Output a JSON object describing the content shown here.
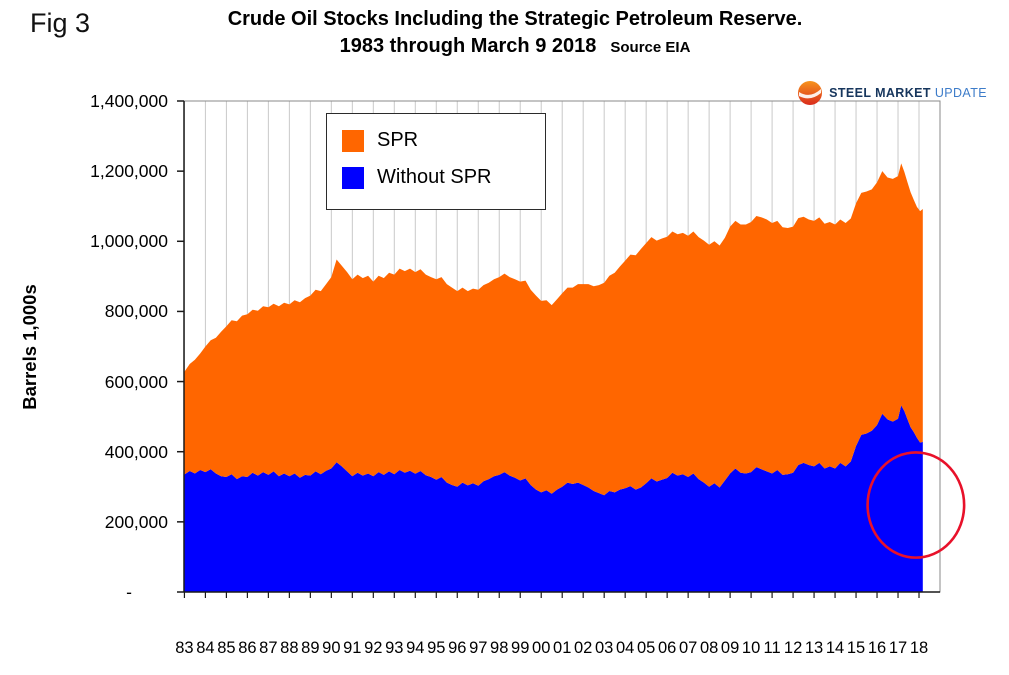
{
  "figure": {
    "label": "Fig 3"
  },
  "header": {
    "title_line1": "Crude Oil Stocks Including the Strategic Petroleum Reserve.",
    "title_line2": "1983 through March 9 2018",
    "source": "Source EIA"
  },
  "logo": {
    "word1": "STEEL",
    "word2": "MARKET",
    "word3": "UPDATE",
    "color_dark": "#17365D",
    "color_light": "#3D7CC9"
  },
  "legend": {
    "items": [
      {
        "label": "SPR",
        "color": "#FF6600"
      },
      {
        "label": "Without SPR",
        "color": "#0000FF"
      }
    ]
  },
  "y_axis": {
    "title": "Barrels 1,000s",
    "tick_labels": [
      "1,400,000",
      "1,200,000",
      "1,000,000",
      "800,000",
      "600,000",
      "400,000",
      "200,000",
      "-"
    ]
  },
  "x_axis": {
    "labels": [
      "83",
      "84",
      "85",
      "86",
      "87",
      "88",
      "89",
      "90",
      "91",
      "92",
      "93",
      "94",
      "95",
      "96",
      "97",
      "98",
      "99",
      "00",
      "01",
      "02",
      "03",
      "04",
      "05",
      "06",
      "07",
      "08",
      "09",
      "10",
      "11",
      "12",
      "13",
      "14",
      "15",
      "16",
      "17",
      "18"
    ]
  },
  "annotation": {
    "shape": "ellipse",
    "color": "#E8112A",
    "center_year": 2017.85,
    "center_value": 248000,
    "radius_years": 2.3,
    "radius_value": 150000
  },
  "chart_data": {
    "type": "area",
    "stacked": true,
    "title": "Crude Oil Stocks Including the Strategic Petroleum Reserve.",
    "subtitle": "1983 through March 9 2018",
    "source": "Source EIA",
    "xlabel": "",
    "ylabel": "Barrels 1,000s",
    "ylim": [
      0,
      1400000
    ],
    "ytick_interval": 200000,
    "legend_position": "top-left-inside",
    "grid": "vertical-only",
    "x_tick_years": [
      1983,
      1984,
      1985,
      1986,
      1987,
      1988,
      1989,
      1990,
      1991,
      1992,
      1993,
      1994,
      1995,
      1996,
      1997,
      1998,
      1999,
      2000,
      2001,
      2002,
      2003,
      2004,
      2005,
      2006,
      2007,
      2008,
      2009,
      2010,
      2011,
      2012,
      2013,
      2014,
      2015,
      2016,
      2017,
      2018
    ],
    "x": [
      1983.0,
      1983.25,
      1983.5,
      1983.75,
      1984.0,
      1984.25,
      1984.5,
      1984.75,
      1985.0,
      1985.25,
      1985.5,
      1985.75,
      1986.0,
      1986.25,
      1986.5,
      1986.75,
      1987.0,
      1987.25,
      1987.5,
      1987.75,
      1988.0,
      1988.25,
      1988.5,
      1988.75,
      1989.0,
      1989.25,
      1989.5,
      1989.75,
      1990.0,
      1990.25,
      1990.5,
      1990.75,
      1991.0,
      1991.25,
      1991.5,
      1991.75,
      1992.0,
      1992.25,
      1992.5,
      1992.75,
      1993.0,
      1993.25,
      1993.5,
      1993.75,
      1994.0,
      1994.25,
      1994.5,
      1994.75,
      1995.0,
      1995.25,
      1995.5,
      1995.75,
      1996.0,
      1996.25,
      1996.5,
      1996.75,
      1997.0,
      1997.25,
      1997.5,
      1997.75,
      1998.0,
      1998.25,
      1998.5,
      1998.75,
      1999.0,
      1999.25,
      1999.5,
      1999.75,
      2000.0,
      2000.25,
      2000.5,
      2000.75,
      2001.0,
      2001.25,
      2001.5,
      2001.75,
      2002.0,
      2002.25,
      2002.5,
      2002.75,
      2003.0,
      2003.25,
      2003.5,
      2003.75,
      2004.0,
      2004.25,
      2004.5,
      2004.75,
      2005.0,
      2005.25,
      2005.5,
      2005.75,
      2006.0,
      2006.25,
      2006.5,
      2006.75,
      2007.0,
      2007.25,
      2007.5,
      2007.75,
      2008.0,
      2008.25,
      2008.5,
      2008.75,
      2009.0,
      2009.25,
      2009.5,
      2009.75,
      2010.0,
      2010.25,
      2010.5,
      2010.75,
      2011.0,
      2011.25,
      2011.5,
      2011.75,
      2012.0,
      2012.25,
      2012.5,
      2012.75,
      2013.0,
      2013.25,
      2013.5,
      2013.75,
      2014.0,
      2014.25,
      2014.5,
      2014.75,
      2015.0,
      2015.25,
      2015.5,
      2015.75,
      2016.0,
      2016.25,
      2016.5,
      2016.75,
      2017.0,
      2017.15,
      2017.3,
      2017.45,
      2017.6,
      2017.75,
      2017.9,
      2018.05,
      2018.18
    ],
    "series": [
      {
        "name": "Without SPR",
        "color": "#0000FF",
        "values": [
          335000,
          345000,
          338000,
          348000,
          342000,
          350000,
          338000,
          330000,
          328000,
          336000,
          322000,
          330000,
          328000,
          340000,
          332000,
          342000,
          334000,
          344000,
          330000,
          338000,
          330000,
          338000,
          326000,
          334000,
          332000,
          344000,
          336000,
          346000,
          352000,
          370000,
          358000,
          344000,
          330000,
          340000,
          332000,
          338000,
          330000,
          342000,
          334000,
          344000,
          336000,
          348000,
          340000,
          346000,
          337000,
          345000,
          333000,
          328000,
          320000,
          328000,
          312000,
          305000,
          300000,
          312000,
          304000,
          310000,
          303000,
          316000,
          322000,
          330000,
          334000,
          342000,
          332000,
          326000,
          318000,
          324000,
          305000,
          292000,
          284000,
          290000,
          280000,
          292000,
          300000,
          312000,
          308000,
          312000,
          305000,
          298000,
          288000,
          282000,
          276000,
          288000,
          284000,
          292000,
          296000,
          302000,
          292000,
          298000,
          310000,
          324000,
          315000,
          320000,
          325000,
          340000,
          332000,
          336000,
          328000,
          338000,
          322000,
          312000,
          300000,
          310000,
          298000,
          318000,
          338000,
          352000,
          340000,
          338000,
          342000,
          356000,
          350000,
          344000,
          338000,
          348000,
          334000,
          336000,
          340000,
          362000,
          368000,
          362000,
          358000,
          368000,
          352000,
          358000,
          352000,
          368000,
          358000,
          372000,
          416000,
          448000,
          452000,
          460000,
          476000,
          508000,
          492000,
          486000,
          494000,
          532000,
          516000,
          492000,
          470000,
          456000,
          440000,
          426000,
          428000
        ]
      },
      {
        "name": "SPR",
        "color": "#FF6600",
        "values": [
          293000,
          305000,
          324000,
          332000,
          358000,
          368000,
          387000,
          412000,
          430000,
          439000,
          450000,
          458000,
          464000,
          465000,
          470000,
          473000,
          478000,
          478000,
          485000,
          487000,
          490000,
          494000,
          500000,
          504000,
          513000,
          518000,
          522000,
          532000,
          546000,
          578000,
          572000,
          568000,
          562000,
          565000,
          563000,
          564000,
          555000,
          560000,
          561000,
          566000,
          569000,
          574000,
          575000,
          576000,
          575000,
          575000,
          572000,
          570000,
          572000,
          570000,
          566000,
          563000,
          558000,
          556000,
          554000,
          555000,
          559000,
          559000,
          560000,
          562000,
          564000,
          566000,
          566000,
          566000,
          567000,
          564000,
          557000,
          553000,
          546000,
          542000,
          538000,
          543000,
          552000,
          556000,
          560000,
          566000,
          573000,
          580000,
          584000,
          593000,
          606000,
          614000,
          626000,
          636000,
          649000,
          660000,
          668000,
          680000,
          685000,
          688000,
          687000,
          688000,
          688000,
          688000,
          688000,
          688000,
          688000,
          690000,
          690000,
          690000,
          690000,
          690000,
          690000,
          692000,
          704000,
          706000,
          708000,
          710000,
          713000,
          716000,
          718000,
          718000,
          714000,
          710000,
          706000,
          702000,
          702000,
          704000,
          702000,
          700000,
          700000,
          700000,
          698000,
          697000,
          696000,
          694000,
          694000,
          693000,
          692000,
          690000,
          690000,
          688000,
          692000,
          692000,
          690000,
          692000,
          692000,
          690000,
          682000,
          676000,
          670000,
          662000,
          658000,
          660000,
          664000
        ]
      }
    ]
  }
}
